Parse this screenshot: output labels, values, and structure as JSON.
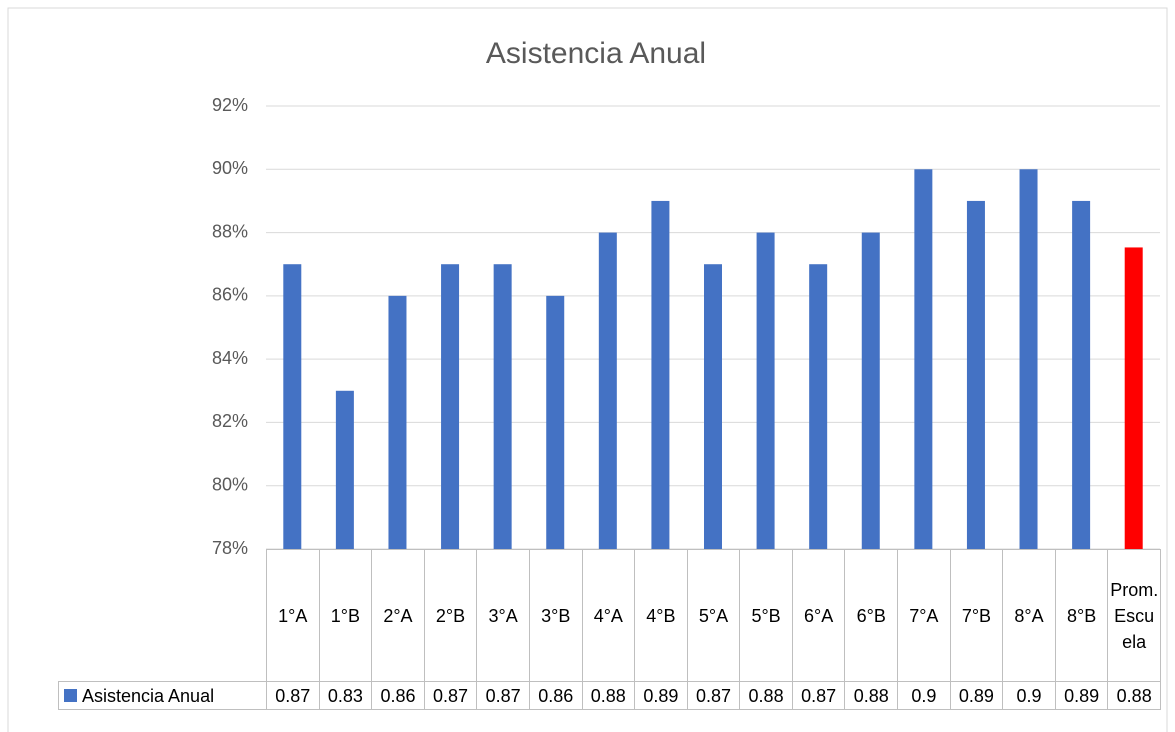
{
  "chart_data": {
    "type": "bar",
    "title": "Asistencia Anual",
    "categories": [
      "1°A",
      "1°B",
      "2°A",
      "2°B",
      "3°A",
      "3°B",
      "4°A",
      "4°B",
      "5°A",
      "5°B",
      "6°A",
      "6°B",
      "7°A",
      "7°B",
      "8°A",
      "8°B",
      "Prom. Escuela"
    ],
    "series": [
      {
        "name": "Asistencia Anual",
        "color": "#4472c4",
        "colors": [
          "#4472c4",
          "#4472c4",
          "#4472c4",
          "#4472c4",
          "#4472c4",
          "#4472c4",
          "#4472c4",
          "#4472c4",
          "#4472c4",
          "#4472c4",
          "#4472c4",
          "#4472c4",
          "#4472c4",
          "#4472c4",
          "#4472c4",
          "#4472c4",
          "#ff0000"
        ],
        "values": [
          0.87,
          0.83,
          0.86,
          0.87,
          0.87,
          0.86,
          0.88,
          0.89,
          0.87,
          0.88,
          0.87,
          0.88,
          0.9,
          0.89,
          0.9,
          0.89,
          0.8753
        ],
        "value_labels": [
          "0.87",
          "0.83",
          "0.86",
          "0.87",
          "0.87",
          "0.86",
          "0.88",
          "0.89",
          "0.87",
          "0.88",
          "0.87",
          "0.88",
          "0.9",
          "0.89",
          "0.9",
          "0.89",
          "0.88"
        ]
      }
    ],
    "ylim": [
      0.78,
      0.92
    ],
    "yticks": [
      {
        "value": 0.78,
        "label": "78%"
      },
      {
        "value": 0.8,
        "label": "80%"
      },
      {
        "value": 0.82,
        "label": "82%"
      },
      {
        "value": 0.84,
        "label": "84%"
      },
      {
        "value": 0.86,
        "label": "86%"
      },
      {
        "value": 0.88,
        "label": "88%"
      },
      {
        "value": 0.9,
        "label": "90%"
      },
      {
        "value": 0.92,
        "label": "92%"
      }
    ],
    "grid": true
  }
}
